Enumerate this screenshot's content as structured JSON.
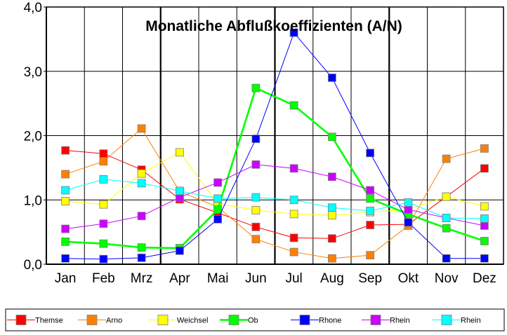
{
  "chart_data": {
    "type": "line",
    "title": "Monatliche Abflußkoeffizienten (A/N)",
    "xlabel": "",
    "ylabel": "",
    "ylim": [
      0,
      4
    ],
    "y_ticks": [
      0,
      1,
      2,
      3,
      4
    ],
    "y_tick_labels": [
      "0,0",
      "1,0",
      "2,0",
      "3,0",
      "4,0"
    ],
    "categories": [
      "Jan",
      "Feb",
      "Mrz",
      "Apr",
      "Mai",
      "Jun",
      "Jul",
      "Aug",
      "Sep",
      "Okt",
      "Nov",
      "Dez"
    ],
    "grid": true,
    "legend_position": "bottom",
    "series": [
      {
        "name": "Themse",
        "color": "#ff0000",
        "values": [
          1.77,
          1.72,
          1.47,
          1.01,
          0.8,
          0.58,
          0.41,
          0.4,
          0.61,
          0.62,
          1.05,
          1.49
        ]
      },
      {
        "name": "Arno",
        "color": "#ff8000",
        "values": [
          1.4,
          1.6,
          2.11,
          1.13,
          0.89,
          0.39,
          0.19,
          0.09,
          0.14,
          0.6,
          1.64,
          1.8
        ]
      },
      {
        "name": "Weichsel",
        "color": "#ffff00",
        "values": [
          0.98,
          0.93,
          1.41,
          1.74,
          0.94,
          0.84,
          0.78,
          0.76,
          0.81,
          0.85,
          1.05,
          0.9
        ]
      },
      {
        "name": "Ob",
        "color": "#00ff00",
        "values": [
          0.35,
          0.32,
          0.26,
          0.25,
          0.85,
          2.74,
          2.47,
          1.98,
          1.02,
          0.78,
          0.56,
          0.36
        ]
      },
      {
        "name": "Rhone",
        "color": "#0000ff",
        "values": [
          0.09,
          0.08,
          0.1,
          0.21,
          0.7,
          1.95,
          3.6,
          2.9,
          1.73,
          0.65,
          0.09,
          0.09
        ]
      },
      {
        "name": "Rhein",
        "color": "#cc00ff",
        "values": [
          0.55,
          0.63,
          0.75,
          1.04,
          1.27,
          1.55,
          1.49,
          1.36,
          1.15,
          0.85,
          0.72,
          0.6
        ]
      },
      {
        "name": "Rhein",
        "color": "#00ffff",
        "values": [
          1.15,
          1.32,
          1.26,
          1.14,
          1.02,
          1.04,
          1.0,
          0.88,
          0.83,
          0.96,
          0.72,
          0.71
        ]
      }
    ]
  }
}
